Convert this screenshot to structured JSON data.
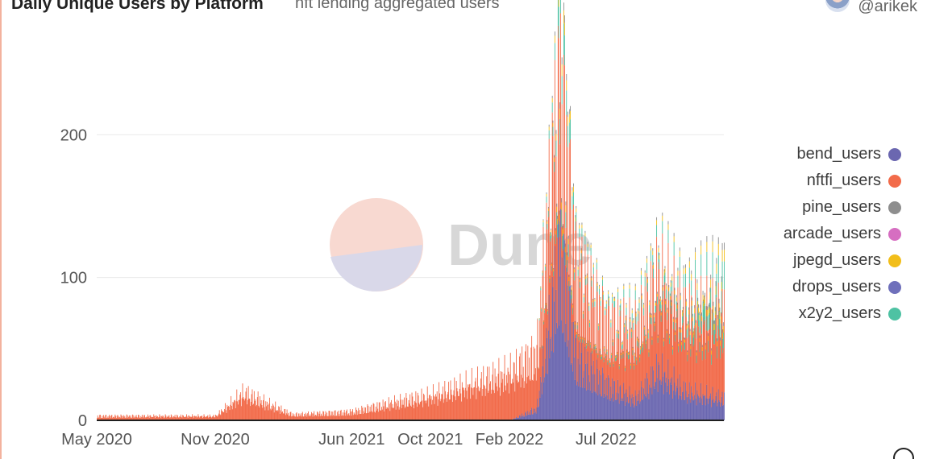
{
  "header": {
    "title": "Daily Unique Users by Platform",
    "subtitle": "nft lending aggregated users",
    "author": "@arikek"
  },
  "watermark": {
    "text": "Dune"
  },
  "chart_data": {
    "type": "bar",
    "stacked": true,
    "x_ticks": [
      "May 2020",
      "Nov 2020",
      "Jun 2021",
      "Oct 2021",
      "Feb 2022",
      "Jul 2022"
    ],
    "y_ticks": [
      "0",
      "100",
      "200"
    ],
    "ylim": [
      0,
      265
    ],
    "xlim": [
      "2020-05-01",
      "2022-12-31"
    ],
    "grid": true,
    "legend_position": "right",
    "series": [
      {
        "name": "bend_users",
        "color": "#6b67b0"
      },
      {
        "name": "nftfi_users",
        "color": "#f26b4a"
      },
      {
        "name": "pine_users",
        "color": "#8e8e8e"
      },
      {
        "name": "arcade_users",
        "color": "#d66ec1"
      },
      {
        "name": "jpegd_users",
        "color": "#f2be1a"
      },
      {
        "name": "drops_users",
        "color": "#6f70bb"
      },
      {
        "name": "x2y2_users",
        "color": "#4ec2a3"
      }
    ],
    "approx_weekly": [
      {
        "date": "2020-05-01",
        "bend": 0,
        "nftfi": 3,
        "other": 0
      },
      {
        "date": "2020-08-01",
        "bend": 0,
        "nftfi": 3,
        "other": 0
      },
      {
        "date": "2020-11-01",
        "bend": 0,
        "nftfi": 3,
        "other": 0
      },
      {
        "date": "2020-12-15",
        "bend": 0,
        "nftfi": 19,
        "other": 0
      },
      {
        "date": "2021-03-01",
        "bend": 0,
        "nftfi": 4,
        "other": 0
      },
      {
        "date": "2021-06-01",
        "bend": 0,
        "nftfi": 6,
        "other": 0
      },
      {
        "date": "2021-08-01",
        "bend": 0,
        "nftfi": 12,
        "other": 0
      },
      {
        "date": "2021-10-01",
        "bend": 0,
        "nftfi": 17,
        "other": 0
      },
      {
        "date": "2021-12-01",
        "bend": 0,
        "nftfi": 25,
        "other": 0
      },
      {
        "date": "2022-02-01",
        "bend": 0,
        "nftfi": 33,
        "other": 0
      },
      {
        "date": "2022-03-15",
        "bend": 8,
        "nftfi": 38,
        "other": 0
      },
      {
        "date": "2022-04-10",
        "bend": 85,
        "nftfi": 95,
        "other": 10
      },
      {
        "date": "2022-04-20",
        "bend": 120,
        "nftfi": 110,
        "other": 35
      },
      {
        "date": "2022-05-15",
        "bend": 45,
        "nftfi": 60,
        "other": 8
      },
      {
        "date": "2022-07-01",
        "bend": 25,
        "nftfi": 40,
        "other": 5
      },
      {
        "date": "2022-08-15",
        "bend": 15,
        "nftfi": 45,
        "other": 8
      },
      {
        "date": "2022-09-20",
        "bend": 35,
        "nftfi": 60,
        "other": 10
      },
      {
        "date": "2022-11-01",
        "bend": 20,
        "nftfi": 50,
        "other": 12
      },
      {
        "date": "2022-12-31",
        "bend": 15,
        "nftfi": 55,
        "other": 25
      }
    ]
  }
}
